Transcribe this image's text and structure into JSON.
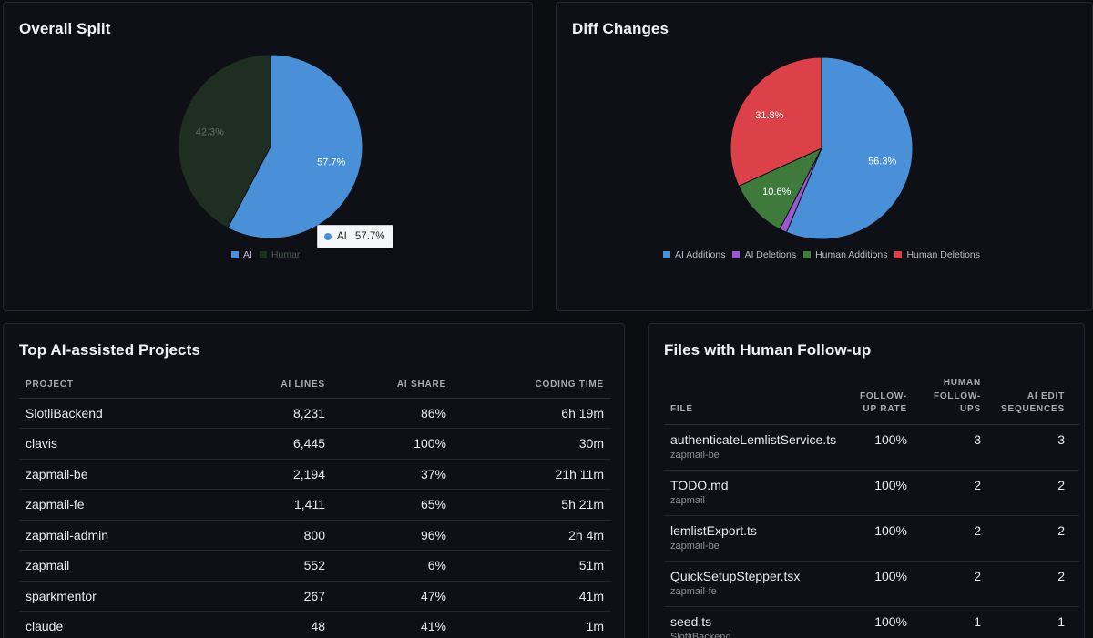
{
  "overall_split": {
    "title": "Overall Split",
    "tooltip": {
      "label": "AI",
      "value": "57.7%"
    }
  },
  "diff_changes": {
    "title": "Diff Changes"
  },
  "chart_data": [
    {
      "type": "pie",
      "title": "Overall Split",
      "categories": [
        "AI",
        "Human"
      ],
      "values": [
        57.7,
        42.3
      ],
      "labels": [
        "57.7%",
        "42.3%"
      ],
      "colors": [
        "#4a90d9",
        "#1e2f22"
      ],
      "legend": "bottom"
    },
    {
      "type": "pie",
      "title": "Diff Changes",
      "categories": [
        "AI Additions",
        "AI Deletions",
        "Human Additions",
        "Human Deletions"
      ],
      "values": [
        56.3,
        1.3,
        10.6,
        31.8
      ],
      "labels": [
        "56.3%",
        "",
        "10.6%",
        "31.8%"
      ],
      "colors": [
        "#4a90d9",
        "#9b59d0",
        "#3e7a3c",
        "#dc4048"
      ],
      "legend": "bottom"
    }
  ],
  "projects": {
    "title": "Top AI-assisted Projects",
    "columns": [
      "PROJECT",
      "AI LINES",
      "AI SHARE",
      "CODING TIME"
    ],
    "rows": [
      [
        "SlotliBackend",
        "8,231",
        "86%",
        "6h 19m"
      ],
      [
        "clavis",
        "6,445",
        "100%",
        "30m"
      ],
      [
        "zapmail-be",
        "2,194",
        "37%",
        "21h 11m"
      ],
      [
        "zapmail-fe",
        "1,411",
        "65%",
        "5h 21m"
      ],
      [
        "zapmail-admin",
        "800",
        "96%",
        "2h 4m"
      ],
      [
        "zapmail",
        "552",
        "6%",
        "51m"
      ],
      [
        "sparkmentor",
        "267",
        "47%",
        "41m"
      ],
      [
        "claude",
        "48",
        "41%",
        "1m"
      ]
    ]
  },
  "files": {
    "title": "Files with Human Follow-up",
    "columns": [
      "FILE",
      "FOLLOW-UP RATE",
      "HUMAN FOLLOW-UPS",
      "AI EDIT SEQUENCES"
    ],
    "rows": [
      {
        "file": "authenticateLemlistService.ts",
        "project": "zapmail-be",
        "rate": "100%",
        "followups": "3",
        "sequences": "3"
      },
      {
        "file": "TODO.md",
        "project": "zapmail",
        "rate": "100%",
        "followups": "2",
        "sequences": "2"
      },
      {
        "file": "lemlistExport.ts",
        "project": "zapmail-be",
        "rate": "100%",
        "followups": "2",
        "sequences": "2"
      },
      {
        "file": "QuickSetupStepper.tsx",
        "project": "zapmail-fe",
        "rate": "100%",
        "followups": "2",
        "sequences": "2"
      },
      {
        "file": "seed.ts",
        "project": "SlotliBackend",
        "rate": "100%",
        "followups": "1",
        "sequences": "1"
      }
    ]
  }
}
